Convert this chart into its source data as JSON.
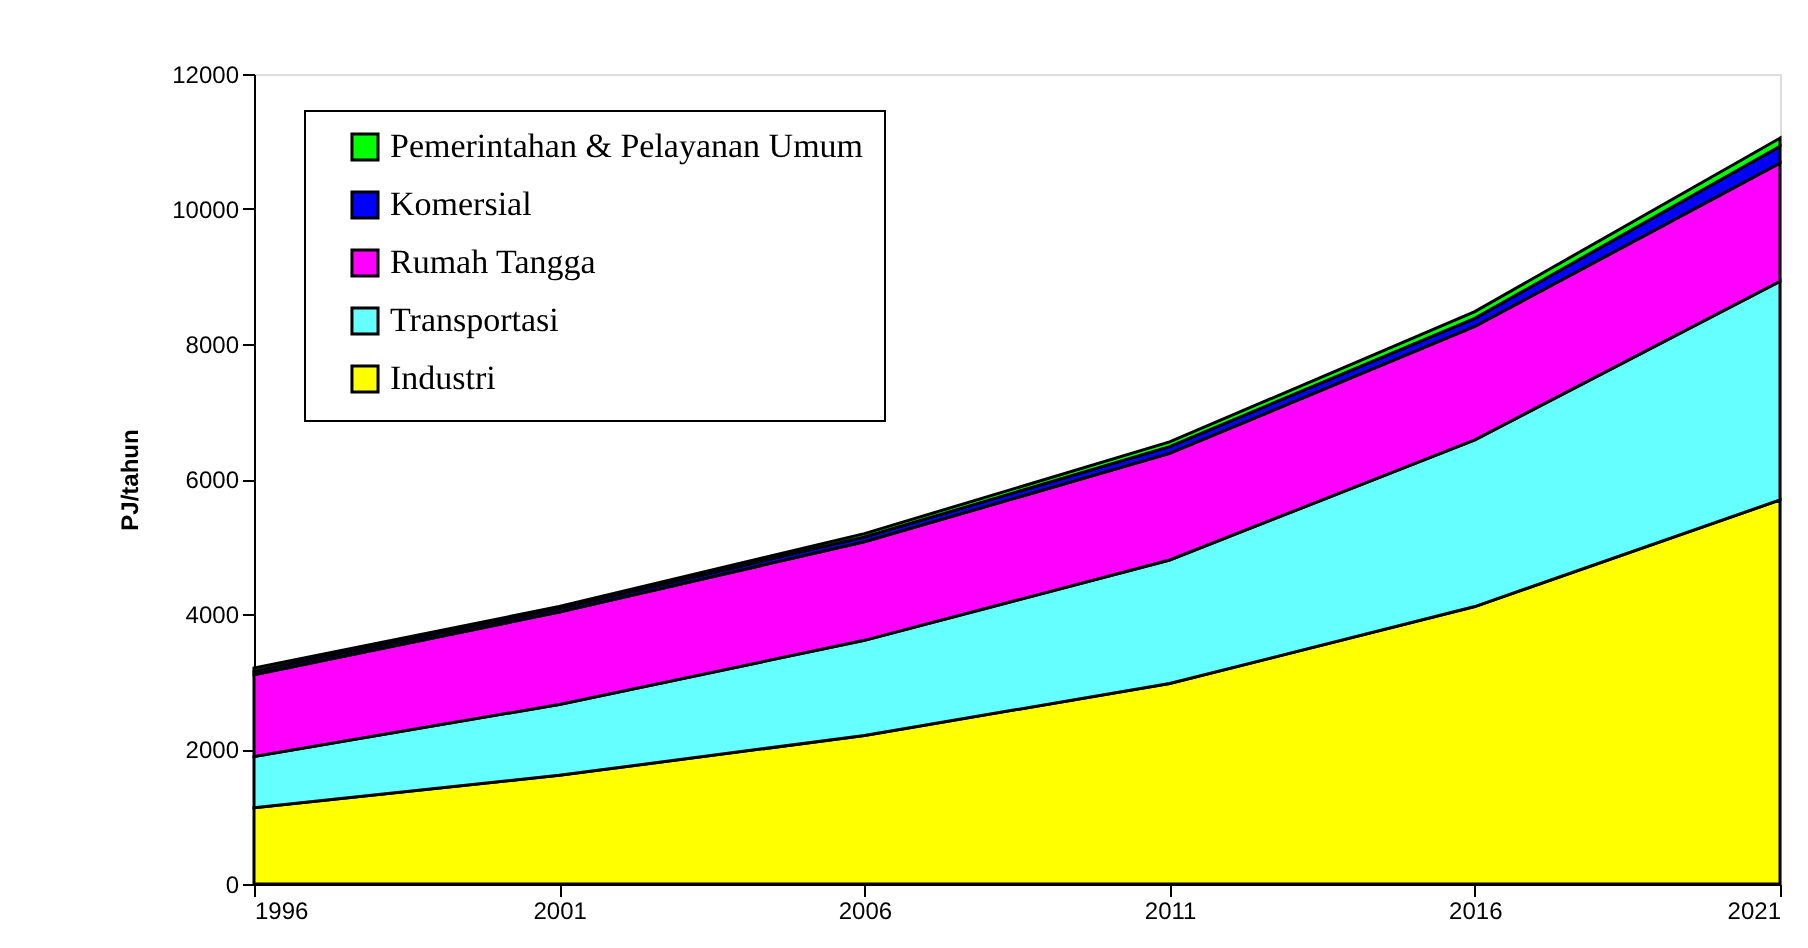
{
  "chart_data": {
    "type": "area",
    "stacked": true,
    "ylabel": "PJ/tahun",
    "x": [
      1996,
      2001,
      2006,
      2011,
      2016,
      2021
    ],
    "xlim": [
      1996,
      2021
    ],
    "xticks": [
      1996,
      2001,
      2006,
      2011,
      2016,
      2021
    ],
    "ylim": [
      0,
      12000
    ],
    "yticks": [
      0,
      2000,
      4000,
      6000,
      8000,
      10000,
      12000
    ],
    "grid": false,
    "legend": "top left",
    "series": [
      {
        "name": "Industri",
        "color": "#ffff00",
        "values": [
          1130,
          1610,
          2200,
          2970,
          4110,
          5690
        ]
      },
      {
        "name": "Transportasi",
        "color": "#66ffff",
        "values": [
          760,
          1050,
          1410,
          1830,
          2470,
          3240
        ]
      },
      {
        "name": "Rumah Tangga",
        "color": "#ff00ff",
        "values": [
          1210,
          1370,
          1460,
          1580,
          1680,
          1750
        ]
      },
      {
        "name": "Komersial",
        "color": "#0000ff",
        "values": [
          50,
          50,
          70,
          100,
          120,
          250
        ]
      },
      {
        "name": "Pemerintahan & Pelayanan Umum",
        "color": "#00ff00",
        "values": [
          50,
          30,
          50,
          70,
          100,
          120
        ]
      }
    ]
  }
}
